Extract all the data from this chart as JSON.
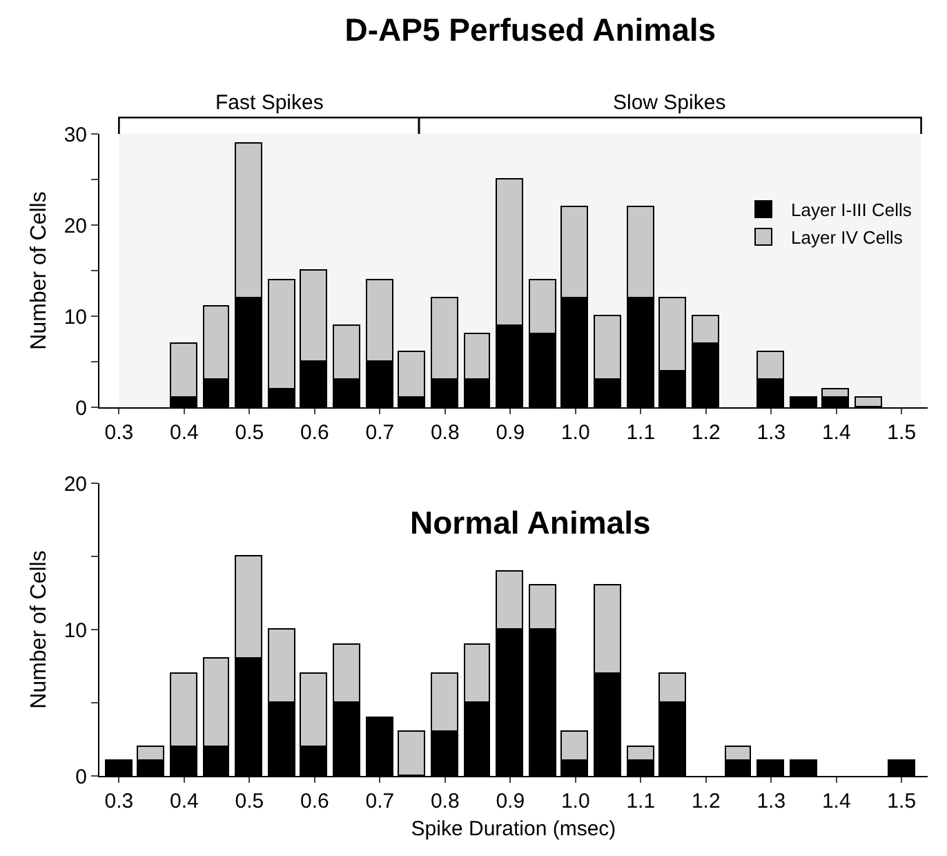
{
  "chart_data": [
    {
      "type": "bar",
      "title": "D-AP5 Perfused Animals",
      "ylabel": "Number of Cells",
      "stacked": true,
      "legend": "top right",
      "x": [
        0.4,
        0.45,
        0.5,
        0.55,
        0.6,
        0.65,
        0.7,
        0.75,
        0.8,
        0.85,
        0.9,
        0.95,
        1.0,
        1.05,
        1.1,
        1.15,
        1.2,
        1.3,
        1.35,
        1.4,
        1.45
      ],
      "series": [
        {
          "name": "Layer I-III Cells",
          "color": "#000000",
          "values": [
            1,
            3,
            12,
            2,
            5,
            3,
            5,
            1,
            3,
            3,
            9,
            8,
            12,
            3,
            12,
            4,
            7,
            3,
            1,
            1,
            null
          ]
        },
        {
          "name": "Layer IV Cells",
          "color": "#c8c8c8",
          "values": [
            6,
            8,
            17,
            12,
            10,
            6,
            9,
            5,
            9,
            5,
            16,
            6,
            10,
            7,
            10,
            8,
            3,
            3,
            null,
            1,
            1
          ]
        }
      ],
      "xlim": [
        0.27,
        1.54
      ],
      "xticks": [
        0.3,
        0.4,
        0.5,
        0.6,
        0.7,
        0.8,
        0.9,
        {
          "value": 1.0,
          "label": "1.0"
        },
        1.1,
        1.2,
        1.3,
        1.4,
        1.5
      ],
      "ylim": [
        0,
        30
      ],
      "yticks": [
        0,
        {
          "value": 5,
          "label": null
        },
        10,
        {
          "value": 15,
          "label": null
        },
        20,
        {
          "value": 25,
          "label": null
        },
        30
      ],
      "bands": [
        {
          "axis": "x",
          "from": 0.3,
          "to": 0.76,
          "label": "Fast Spikes",
          "color": "#000000"
        },
        {
          "axis": "x",
          "from": 0.76,
          "to": 1.53,
          "label": "Slow Spikes",
          "color": "#000000"
        }
      ]
    },
    {
      "type": "bar",
      "title": "Normal Animals",
      "xlabel": "Spike Duration (msec)",
      "ylabel": "Number of Cells",
      "stacked": true,
      "x": [
        0.3,
        0.35,
        0.4,
        0.45,
        0.5,
        0.55,
        0.6,
        0.65,
        0.7,
        0.75,
        0.8,
        0.85,
        0.9,
        0.95,
        1.0,
        1.05,
        1.1,
        1.15,
        1.25,
        1.3,
        1.35,
        1.5
      ],
      "series": [
        {
          "color": "#000000",
          "values": [
            1,
            1,
            2,
            2,
            8,
            5,
            2,
            5,
            4,
            null,
            3,
            5,
            10,
            10,
            1,
            7,
            1,
            5,
            1,
            1,
            1,
            1
          ]
        },
        {
          "color": "#c8c8c8",
          "values": [
            null,
            1,
            5,
            6,
            7,
            5,
            5,
            4,
            null,
            3,
            4,
            4,
            4,
            3,
            2,
            6,
            1,
            2,
            1,
            null,
            null,
            null
          ]
        }
      ],
      "xlim": [
        0.27,
        1.54
      ],
      "xticks": [
        0.3,
        0.4,
        0.5,
        0.6,
        0.7,
        0.8,
        0.9,
        {
          "value": 1.0,
          "label": "1.0"
        },
        1.1,
        1.2,
        1.3,
        1.4,
        1.5
      ],
      "ylim": [
        0,
        20
      ],
      "yticks": [
        0,
        {
          "value": 5,
          "label": null
        },
        10,
        {
          "value": 15,
          "label": null
        },
        20
      ]
    }
  ]
}
